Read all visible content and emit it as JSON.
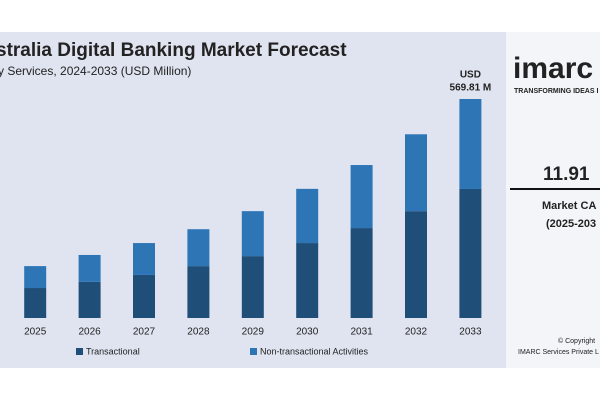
{
  "chart_data": {
    "type": "stacked_bar",
    "title": "stralia Digital Banking Market Forecast",
    "subtitle": "y Services, 2024-2033 (USD Million)",
    "categories": [
      "2025",
      "2026",
      "2027",
      "2028",
      "2029",
      "2030",
      "2031",
      "2032",
      "2033"
    ],
    "series": [
      {
        "name": "Transactional",
        "color": "#1f4e79",
        "values": [
          78,
          94,
          112,
          135,
          161,
          195,
          234,
          278,
          335.7
        ]
      },
      {
        "name": "Non-transactional Activities",
        "color": "#2e75b6",
        "values": [
          57,
          70,
          83,
          96,
          117,
          141,
          164,
          200,
          234.11
        ]
      }
    ],
    "annotation": [
      "USD",
      "569.81 M"
    ],
    "ylim": [
      0,
      600
    ],
    "side_panel": {
      "logo": "imarc",
      "tagline": "TRANSFORMING IDEAS I",
      "cagr": "11.91",
      "cagr_label": "Market CA",
      "cagr_period": "(2025-203",
      "copyright": "© Copyright",
      "company": "IMARC Services Private L"
    }
  }
}
